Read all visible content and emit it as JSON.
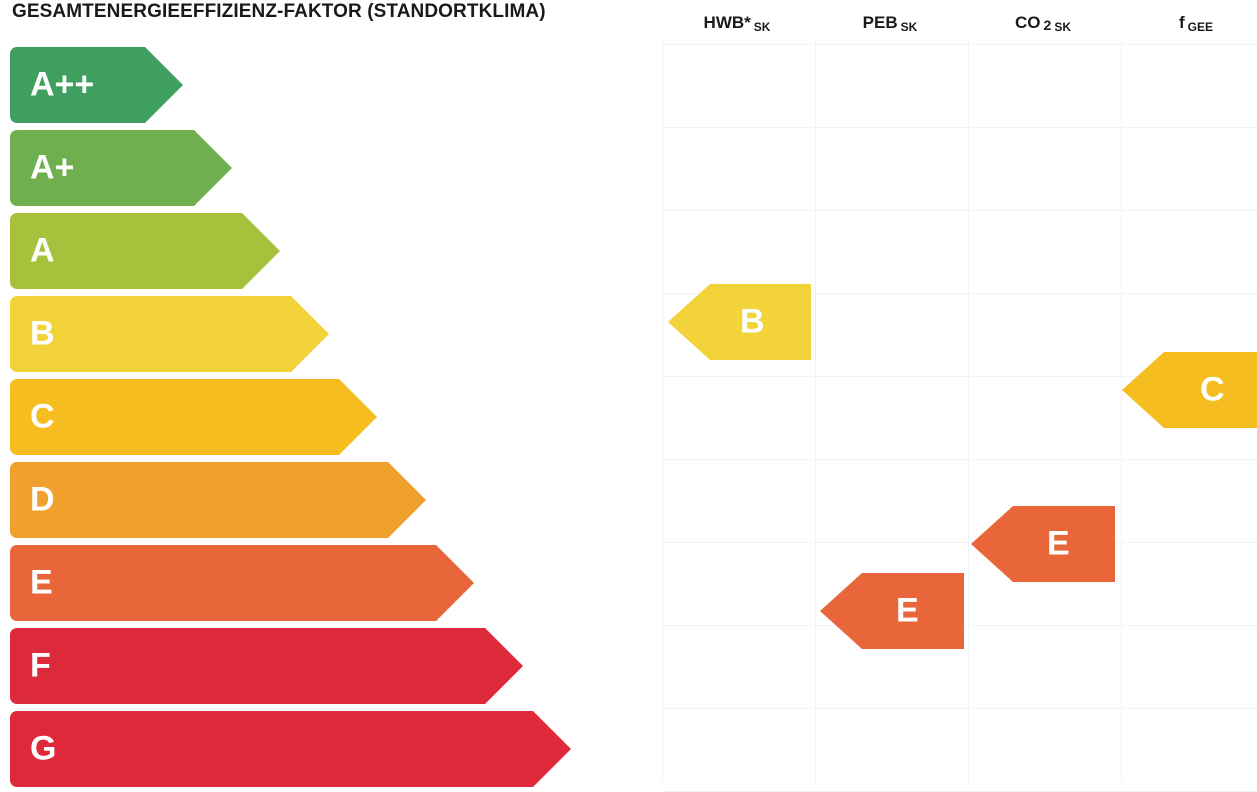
{
  "title": "GESAMTENERGIEEFFIZIENZ-FAKTOR (STANDORTKLIMA)",
  "columns": {
    "hwb": {
      "main": "HWB*",
      "sub": "SK"
    },
    "peb": {
      "main": "PEB",
      "sub": "SK"
    },
    "co2": {
      "main": "CO",
      "mid": "2",
      "sub": "SK"
    },
    "fgee": {
      "main": "f",
      "sub": "GEE"
    }
  },
  "scale": [
    {
      "label": "A++",
      "color": "#3f9f5f"
    },
    {
      "label": "A+",
      "color": "#6faf4f"
    },
    {
      "label": "A",
      "color": "#a6c23c"
    },
    {
      "label": "B",
      "color": "#f2d43a"
    },
    {
      "label": "C",
      "color": "#f5bd20"
    },
    {
      "label": "D",
      "color": "#f0a02c"
    },
    {
      "label": "E",
      "color": "#e8663a"
    },
    {
      "label": "F",
      "color": "#dc2a3a"
    },
    {
      "label": "G",
      "color": "#e0283b"
    }
  ],
  "ratings": {
    "hwb": {
      "label": "B",
      "color": "#f2d43a"
    },
    "peb": {
      "label": "E",
      "color": "#e8663a"
    },
    "co2": {
      "label": "E",
      "color": "#e8663a"
    },
    "fgee": {
      "label": "C",
      "color": "#f5bd20"
    }
  }
}
